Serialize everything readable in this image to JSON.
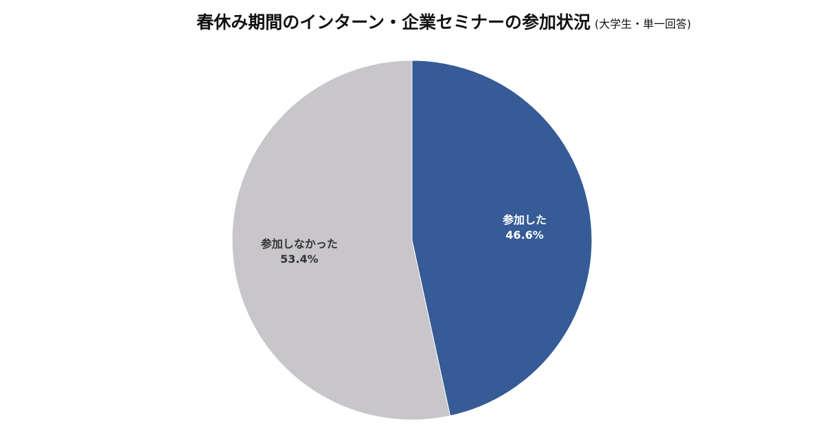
{
  "chart_data": {
    "type": "pie",
    "title": "春休み期間のインターン・企業セミナーの参加状況",
    "subtitle": "(大学生・単一回答)",
    "categories": [
      "参加した",
      "参加しなかった"
    ],
    "values": [
      46.6,
      53.4
    ],
    "value_labels": [
      "46.6%",
      "53.4%"
    ],
    "colors": [
      "#365b96",
      "#c8c6ca"
    ]
  }
}
